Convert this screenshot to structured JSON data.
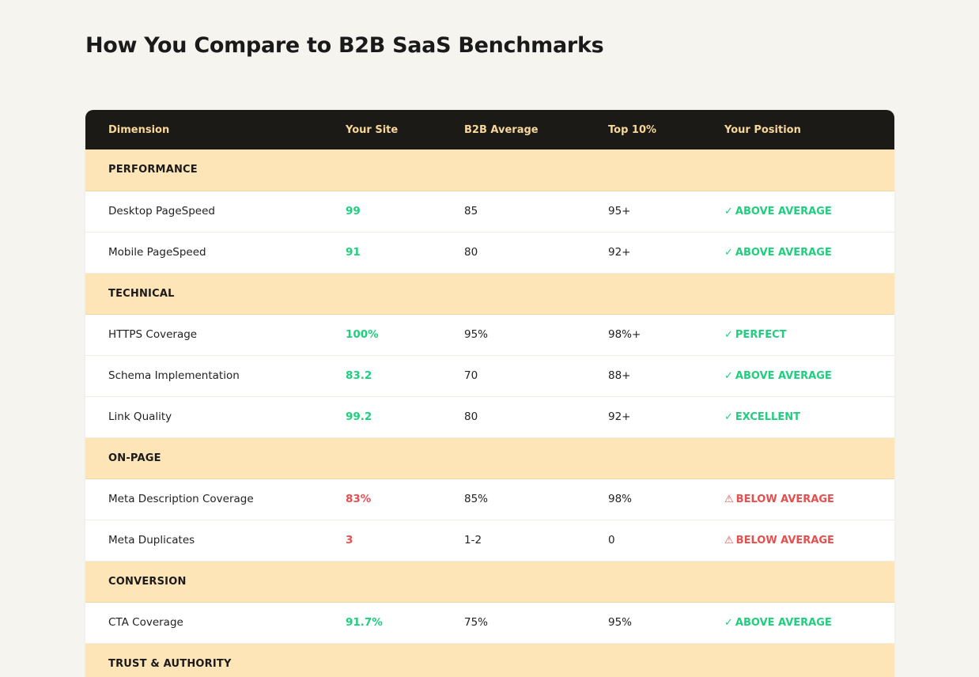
{
  "page": {
    "title": "How You Compare to B2B SaaS Benchmarks"
  },
  "table": {
    "headers": [
      "Dimension",
      "Your Site",
      "B2B Average",
      "Top 10%",
      "Your Position"
    ],
    "sections": [
      {
        "label": "PERFORMANCE",
        "rows": [
          {
            "dimension": "Desktop PageSpeed",
            "your_site": "99",
            "b2b_average": "85",
            "top10": "95+",
            "position": "ABOVE AVERAGE",
            "status": "good"
          },
          {
            "dimension": "Mobile PageSpeed",
            "your_site": "91",
            "b2b_average": "80",
            "top10": "92+",
            "position": "ABOVE AVERAGE",
            "status": "good"
          }
        ]
      },
      {
        "label": "TECHNICAL",
        "rows": [
          {
            "dimension": "HTTPS Coverage",
            "your_site": "100%",
            "b2b_average": "95%",
            "top10": "98%+",
            "position": "PERFECT",
            "status": "good"
          },
          {
            "dimension": "Schema Implementation",
            "your_site": "83.2",
            "b2b_average": "70",
            "top10": "88+",
            "position": "ABOVE AVERAGE",
            "status": "good"
          },
          {
            "dimension": "Link Quality",
            "your_site": "99.2",
            "b2b_average": "80",
            "top10": "92+",
            "position": "EXCELLENT",
            "status": "good"
          }
        ]
      },
      {
        "label": "ON-PAGE",
        "rows": [
          {
            "dimension": "Meta Description Coverage",
            "your_site": "83%",
            "b2b_average": "85%",
            "top10": "98%",
            "position": "BELOW AVERAGE",
            "status": "bad"
          },
          {
            "dimension": "Meta Duplicates",
            "your_site": "3",
            "b2b_average": "1-2",
            "top10": "0",
            "position": "BELOW AVERAGE",
            "status": "bad"
          }
        ]
      },
      {
        "label": "CONVERSION",
        "rows": [
          {
            "dimension": "CTA Coverage",
            "your_site": "91.7%",
            "b2b_average": "75%",
            "top10": "95%",
            "position": "ABOVE AVERAGE",
            "status": "good"
          }
        ]
      },
      {
        "label": "TRUST & AUTHORITY",
        "rows": []
      }
    ]
  },
  "icons": {
    "good": "check-icon",
    "bad": "warning-icon"
  },
  "colors": {
    "header_bg": "#1c1a17",
    "header_text": "#f7d89a",
    "section_bg": "#fde5b8",
    "good": "#1fcf7e",
    "bad": "#e94e4e",
    "page_bg": "#f5f4ef"
  }
}
